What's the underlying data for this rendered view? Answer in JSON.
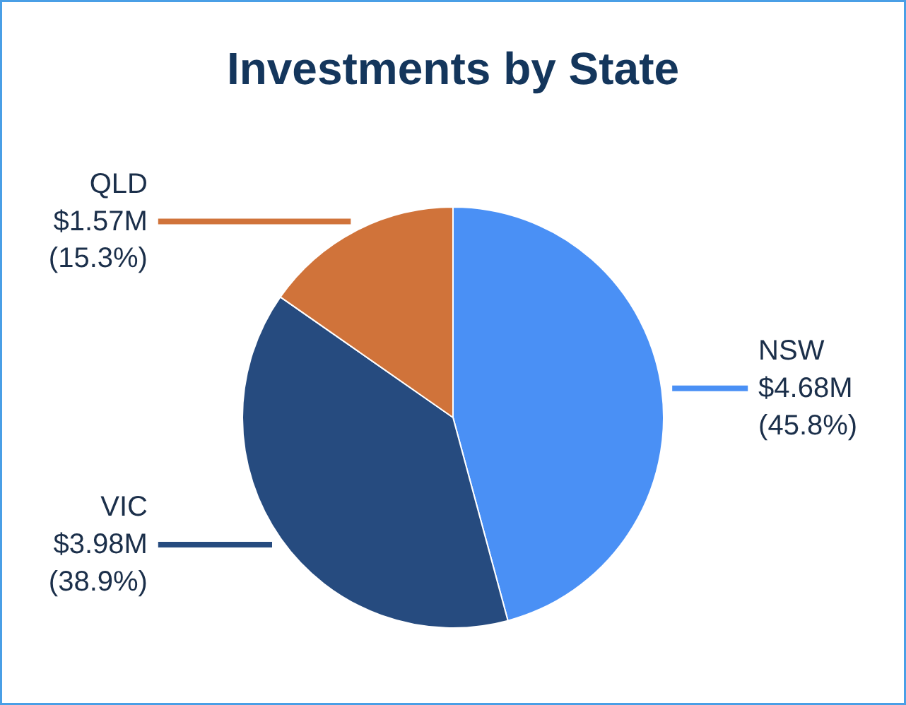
{
  "chart_data": {
    "type": "pie",
    "title": "Investments by State",
    "categories": [
      "NSW",
      "VIC",
      "QLD"
    ],
    "values": [
      45.8,
      38.9,
      15.3
    ],
    "value_labels": [
      "$4.68M\n(45.8%)",
      "$3.98M\n(38.9%)",
      "$1.57M\n(15.3%)"
    ],
    "colors": [
      "#4a90f5",
      "#264b7f",
      "#d0733a"
    ]
  }
}
